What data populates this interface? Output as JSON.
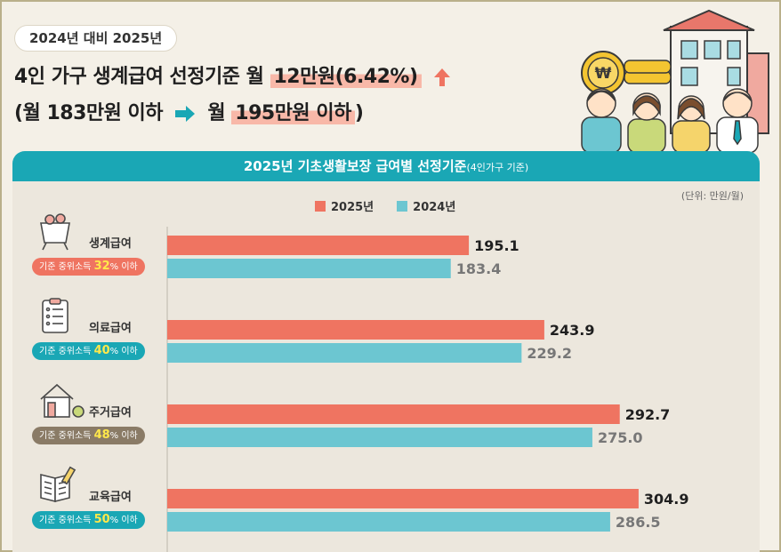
{
  "header": {
    "pill": "2024년 대비 2025년",
    "line1_prefix": "4인 가구 생계급여 선정기준 월",
    "line1_highlight": "12만원(6.42%)",
    "line2_open": "(월 183만원 이하",
    "line2_month": "월",
    "line2_highlight": "195만원 이하",
    "line2_close": ")"
  },
  "panel": {
    "title": "2025년 기초생활보장 급여별 선정기준",
    "title_note": "(4인가구 기준)",
    "unit": "(단위: 만원/월)"
  },
  "colors": {
    "y2025": "#ef7461",
    "y2024": "#6cc6d1",
    "teal": "#1aa7b5",
    "accent_up": "#ef7461",
    "badge_colors": [
      "#ef7461",
      "#1aa7b5",
      "#8a7b66",
      "#1aa7b5"
    ]
  },
  "categories": [
    {
      "label": "생계급여",
      "badge_prefix": "기준 중위소득 ",
      "badge_pct": "32",
      "badge_suffix": "% 이하",
      "icon": "groceries-basket-icon"
    },
    {
      "label": "의료급여",
      "badge_prefix": "기준 중위소득 ",
      "badge_pct": "40",
      "badge_suffix": "% 이하",
      "icon": "medical-chart-icon"
    },
    {
      "label": "주거급여",
      "badge_prefix": "기준 중위소득 ",
      "badge_pct": "48",
      "badge_suffix": "% 이하",
      "icon": "house-icon"
    },
    {
      "label": "교육급여",
      "badge_prefix": "기준 중위소득 ",
      "badge_pct": "50",
      "badge_suffix": "% 이하",
      "icon": "book-icon"
    }
  ],
  "chart_data": {
    "type": "bar",
    "orientation": "horizontal",
    "categories": [
      "생계급여",
      "의료급여",
      "주거급여",
      "교육급여"
    ],
    "series": [
      {
        "name": "2025년",
        "values": [
          195.1,
          243.9,
          292.7,
          304.9
        ],
        "labels": [
          "195.1",
          "243.9",
          "292.7",
          "304.9"
        ]
      },
      {
        "name": "2024년",
        "values": [
          183.4,
          229.2,
          275.0,
          286.5
        ],
        "labels": [
          "183.4",
          "229.2",
          "275.0",
          "286.5"
        ]
      }
    ],
    "title": "2025년 기초생활보장 급여별 선정기준",
    "legend_position": "top-center",
    "grid": false
  }
}
